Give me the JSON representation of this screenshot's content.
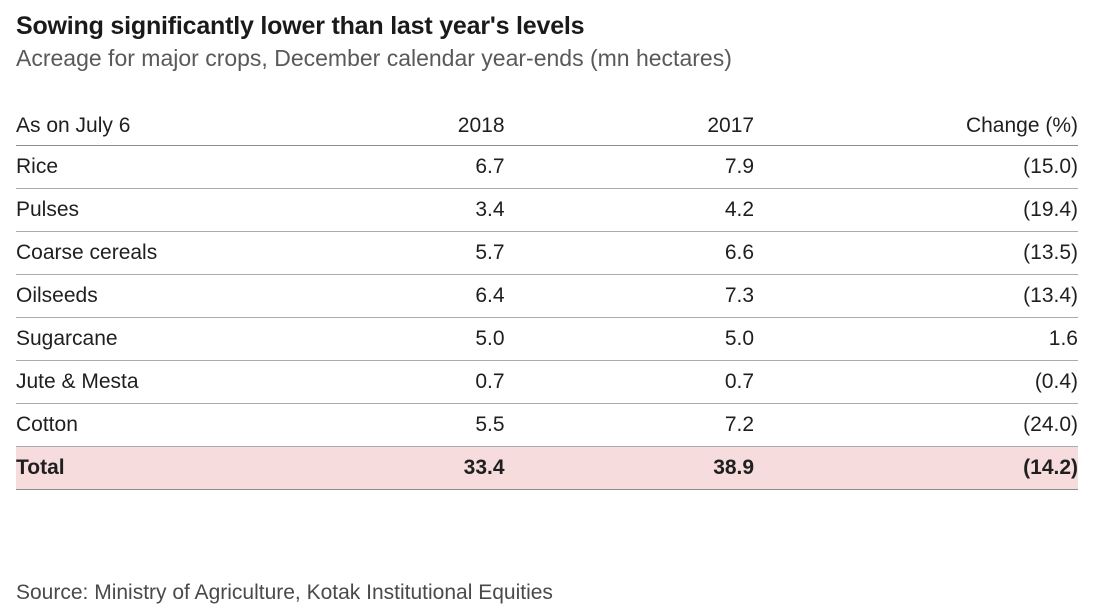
{
  "chart_data": {
    "type": "table",
    "title": "Sowing significantly lower than last year's levels",
    "subtitle": "Acreage for major crops, December calendar year-ends (mn hectares)",
    "columns": [
      "As on July 6",
      "2018",
      "2017",
      "Change (%)"
    ],
    "rows": [
      [
        "Rice",
        "6.7",
        "7.9",
        "(15.0)"
      ],
      [
        "Pulses",
        "3.4",
        "4.2",
        "(19.4)"
      ],
      [
        "Coarse cereals",
        "5.7",
        "6.6",
        "(13.5)"
      ],
      [
        "Oilseeds",
        "6.4",
        "7.3",
        "(13.4)"
      ],
      [
        "Sugarcane",
        "5.0",
        "5.0",
        "1.6"
      ],
      [
        "Jute & Mesta",
        "0.7",
        "0.7",
        "(0.4)"
      ],
      [
        "Cotton",
        "5.5",
        "7.2",
        "(24.0)"
      ]
    ],
    "total_row": [
      "Total",
      "33.4",
      "38.9",
      "(14.2)"
    ]
  },
  "source": "Source: Ministry of Agriculture, Kotak Institutional Equities",
  "colors": {
    "total_row_background": "#f6dcdc",
    "row_border": "#ababab",
    "header_border": "#8c8c8c",
    "title_text": "#1a1a1a",
    "subtitle_text": "#595959"
  }
}
